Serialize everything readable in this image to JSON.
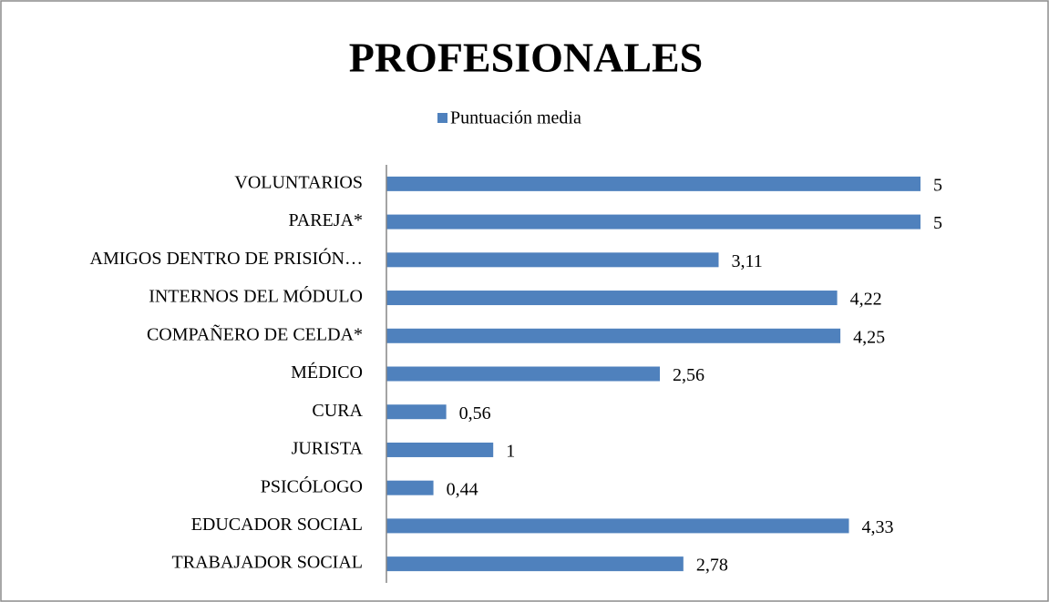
{
  "chart_data": {
    "type": "barh",
    "title": "PROFESIONALES",
    "categories": [
      "VOLUNTARIOS",
      "PAREJA*",
      "AMIGOS DENTRO DE PRISIÓN…",
      "INTERNOS DEL MÓDULO",
      "COMPAÑERO DE CELDA*",
      "MÉDICO",
      "CURA",
      "JURISTA",
      "PSICÓLOGO",
      "EDUCADOR SOCIAL",
      "TRABAJADOR SOCIAL"
    ],
    "series": [
      {
        "name": "Puntuación media",
        "color": "#4f81bd",
        "values": [
          5,
          5,
          3.11,
          4.22,
          4.25,
          2.56,
          0.56,
          1,
          0.44,
          4.33,
          2.78
        ],
        "value_labels": [
          "5",
          "5",
          "3,11",
          "4,22",
          "4,25",
          "2,56",
          "0,56",
          "1",
          "0,44",
          "4,33",
          "2,78"
        ]
      }
    ],
    "xlim": [
      0,
      5
    ],
    "legend": "top"
  }
}
